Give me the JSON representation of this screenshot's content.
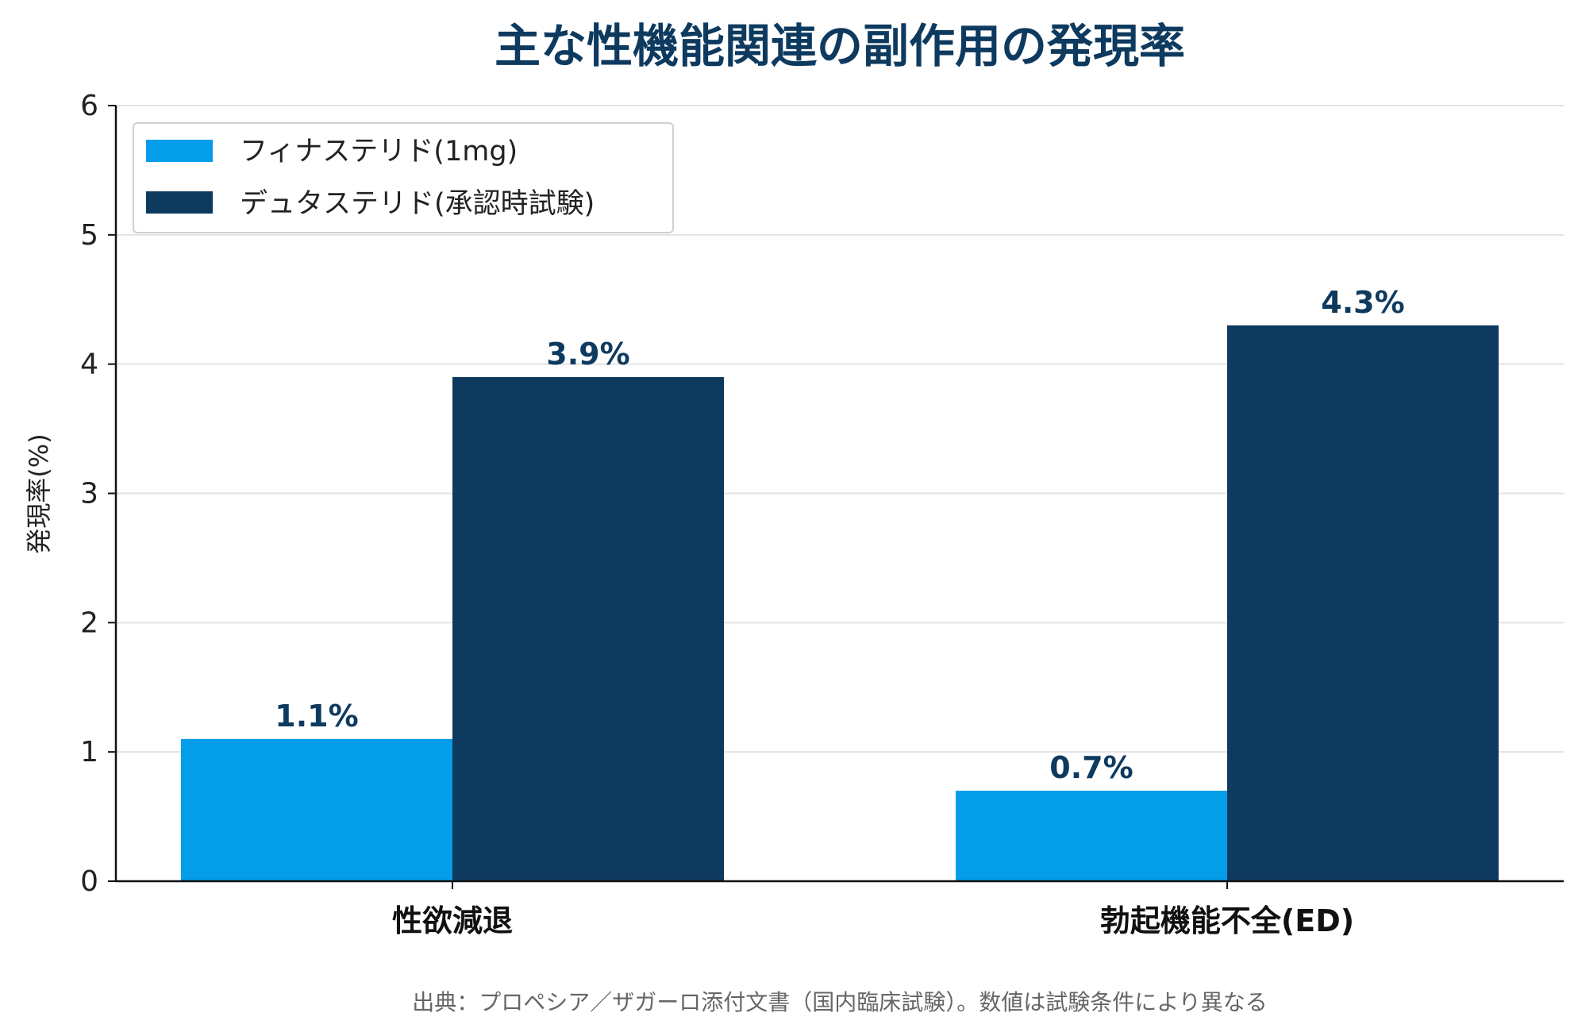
{
  "chart_data": {
    "type": "bar",
    "title": "主な性機能関連の副作用の発現率",
    "xlabel": "",
    "ylabel": "発現率(%)",
    "ylim": [
      0,
      6
    ],
    "yticks": [
      "0",
      "1",
      "2",
      "3",
      "4",
      "5",
      "6"
    ],
    "categories": [
      "性欲減退",
      "勃起機能不全(ED)"
    ],
    "series": [
      {
        "name": "フィナステリド(1mg)",
        "color": "#049de9",
        "values": [
          1.1,
          0.7
        ],
        "labels": [
          "1.1%",
          "0.7%"
        ]
      },
      {
        "name": "デュタステリド(承認時試験)",
        "color": "#0e3a5f",
        "values": [
          3.9,
          4.3
        ],
        "labels": [
          "3.9%",
          "4.3%"
        ]
      }
    ],
    "grid": true,
    "legend_position": "top-left"
  },
  "source_note": "出典：プロペシア／ザガーロ添付文書（国内臨床試験）。数値は試験条件により異なる"
}
